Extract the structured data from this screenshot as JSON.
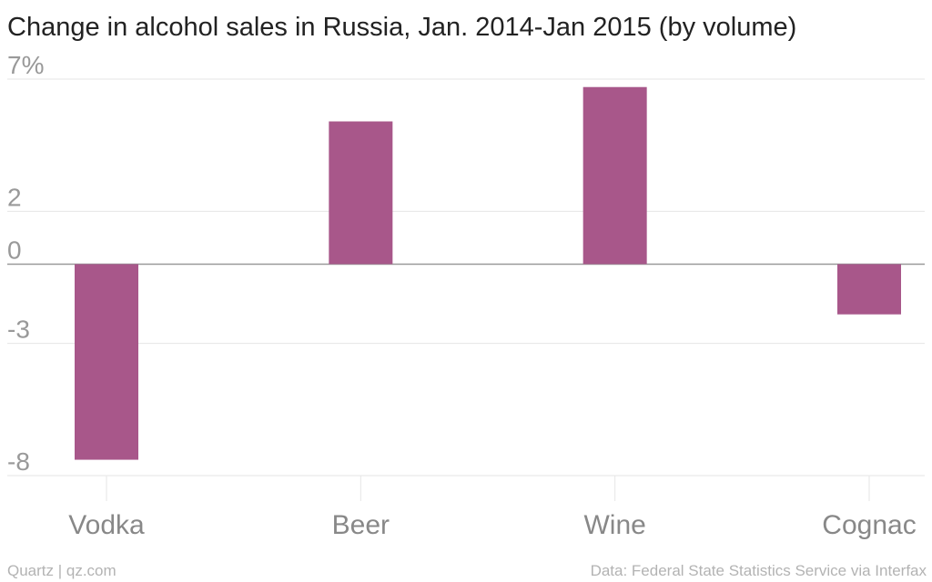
{
  "chart_data": {
    "type": "bar",
    "title": "Change in alcohol sales in Russia, Jan. 2014-Jan 2015 (by volume)",
    "categories": [
      "Vodka",
      "Beer",
      "Wine",
      "Cognac"
    ],
    "values": [
      -7.4,
      5.4,
      6.7,
      -1.9
    ],
    "ylim": [
      -8,
      7
    ],
    "yticks": [
      7,
      2,
      0,
      -3,
      -8
    ],
    "ytick_labels": [
      "7%",
      "2",
      "0",
      "-3",
      "-8"
    ],
    "grid": true,
    "bar_color": "#a8578a"
  },
  "footer": {
    "source_left": "Quartz | qz.com",
    "source_right": "Data: Federal State Statistics Service via Interfax"
  }
}
